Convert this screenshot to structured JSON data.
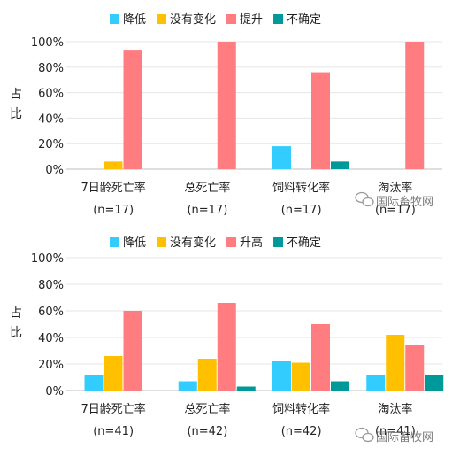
{
  "chart_data": [
    {
      "type": "bar",
      "title": "",
      "ylabel": "占比",
      "ylim": [
        0,
        100
      ],
      "yticks": [
        "0%",
        "20%",
        "40%",
        "60%",
        "80%",
        "100%"
      ],
      "legend_position": "top",
      "grid": true,
      "categories": [
        "7日龄死亡率",
        "总死亡率",
        "饲料转化率",
        "淘汰率"
      ],
      "n_labels": [
        "(n=17)",
        "(n=17)",
        "(n=17)",
        "(n=17)"
      ],
      "series": [
        {
          "name": "降低",
          "color": "#33CCFF",
          "values": [
            0,
            0,
            18,
            0
          ]
        },
        {
          "name": "没有变化",
          "color": "#FFC000",
          "values": [
            6,
            0,
            0,
            0
          ]
        },
        {
          "name": "提升",
          "color": "#FF7C80",
          "values": [
            93,
            100,
            76,
            100
          ]
        },
        {
          "name": "不确定",
          "color": "#009999",
          "values": [
            0,
            0,
            6,
            0
          ]
        }
      ]
    },
    {
      "type": "bar",
      "title": "",
      "ylabel": "占比",
      "ylim": [
        0,
        100
      ],
      "yticks": [
        "0%",
        "20%",
        "40%",
        "60%",
        "80%",
        "100%"
      ],
      "legend_position": "top",
      "grid": true,
      "categories": [
        "7日龄死亡率",
        "总死亡率",
        "饲料转化率",
        "淘汰率"
      ],
      "n_labels": [
        "(n=41)",
        "(n=42)",
        "(n=42)",
        "(n=41)"
      ],
      "series": [
        {
          "name": "降低",
          "color": "#33CCFF",
          "values": [
            12,
            7,
            22,
            12
          ]
        },
        {
          "name": "没有变化",
          "color": "#FFC000",
          "values": [
            26,
            24,
            21,
            42
          ]
        },
        {
          "name": "升高",
          "color": "#FF7C80",
          "values": [
            60,
            66,
            50,
            34
          ]
        },
        {
          "name": "不确定",
          "color": "#009999",
          "values": [
            0,
            3,
            7,
            12
          ]
        }
      ]
    }
  ],
  "watermark": {
    "text": "国际畜牧网",
    "icon": "wechat-icon"
  }
}
